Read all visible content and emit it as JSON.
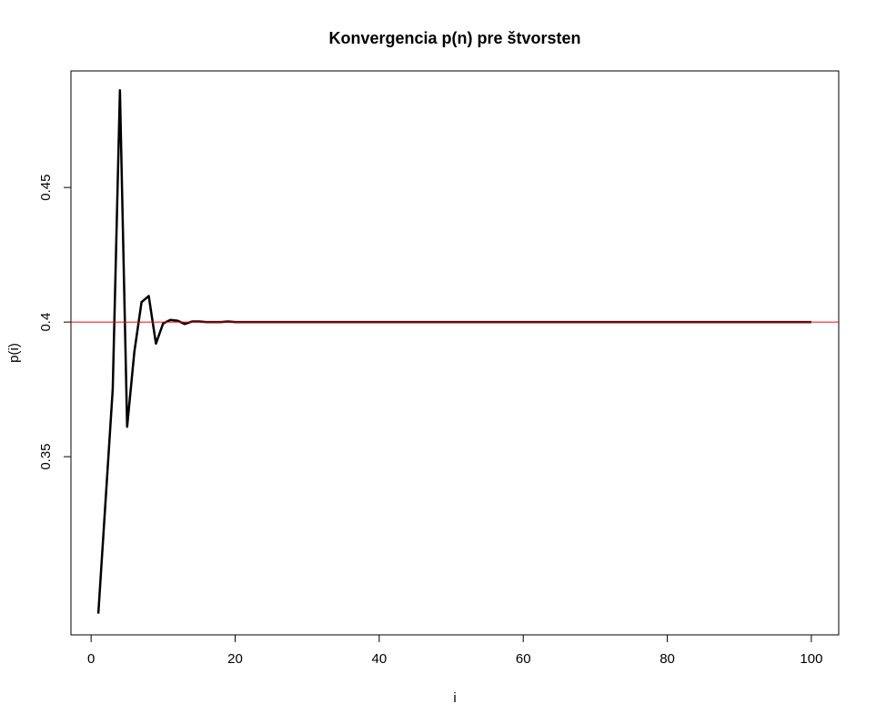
{
  "chart_data": {
    "type": "line",
    "title": "Konvergencia p(n) pre štvorsten",
    "xlabel": "i",
    "ylabel": "p(i)",
    "xlim": [
      -2.8,
      103.8
    ],
    "ylim": [
      0.2838,
      0.4933
    ],
    "xticks": [
      0,
      20,
      40,
      60,
      80,
      100
    ],
    "xtick_labels": [
      "0",
      "20",
      "40",
      "60",
      "80",
      "100"
    ],
    "yticks": [
      0.35,
      0.4,
      0.45
    ],
    "ytick_labels": [
      "0.35",
      "0.4",
      "0.45"
    ],
    "grid": false,
    "legend": "none",
    "series": [
      {
        "color": "#000000",
        "x": [
          1,
          2,
          3,
          4,
          5,
          6,
          7,
          8,
          9,
          10,
          11,
          12,
          13,
          14,
          15,
          16,
          17,
          18,
          19,
          20,
          21,
          22,
          23,
          24,
          25,
          26,
          27,
          28,
          29,
          30,
          31,
          32,
          33,
          34,
          35,
          36,
          37,
          38,
          39,
          40,
          41,
          42,
          43,
          44,
          45,
          46,
          47,
          48,
          49,
          50,
          51,
          52,
          53,
          54,
          55,
          56,
          57,
          58,
          59,
          60,
          61,
          62,
          63,
          64,
          65,
          66,
          67,
          68,
          69,
          70,
          71,
          72,
          73,
          74,
          75,
          76,
          77,
          78,
          79,
          80,
          81,
          82,
          83,
          84,
          85,
          86,
          87,
          88,
          89,
          90,
          91,
          92,
          93,
          94,
          95,
          96,
          97,
          98,
          99,
          100
        ],
        "y": [
          0.2917,
          0.3333,
          0.375,
          0.4861,
          0.3611,
          0.3889,
          0.4074,
          0.4097,
          0.392,
          0.3995,
          0.4008,
          0.4005,
          0.3993,
          0.4002,
          0.4002,
          0.4,
          0.4,
          0.4,
          0.4002,
          0.4,
          0.4,
          0.4,
          0.4,
          0.4,
          0.4,
          0.4,
          0.4,
          0.4,
          0.4,
          0.4,
          0.4,
          0.4,
          0.4,
          0.4,
          0.4,
          0.4,
          0.4,
          0.4,
          0.4,
          0.4,
          0.4,
          0.4,
          0.4,
          0.4,
          0.4,
          0.4,
          0.4,
          0.4,
          0.4,
          0.4,
          0.4,
          0.4,
          0.4,
          0.4,
          0.4,
          0.4,
          0.4,
          0.4,
          0.4,
          0.4,
          0.4,
          0.4,
          0.4,
          0.4,
          0.4,
          0.4,
          0.4,
          0.4,
          0.4,
          0.4,
          0.4,
          0.4,
          0.4,
          0.4,
          0.4,
          0.4,
          0.4,
          0.4,
          0.4,
          0.4,
          0.4,
          0.4,
          0.4,
          0.4,
          0.4,
          0.4,
          0.4,
          0.4,
          0.4,
          0.4,
          0.4,
          0.4,
          0.4,
          0.4,
          0.4,
          0.4,
          0.4,
          0.4,
          0.4,
          0.4
        ]
      }
    ],
    "reference_lines": [
      {
        "orientation": "horizontal",
        "y": 0.4,
        "color": "#ff0000"
      }
    ]
  }
}
